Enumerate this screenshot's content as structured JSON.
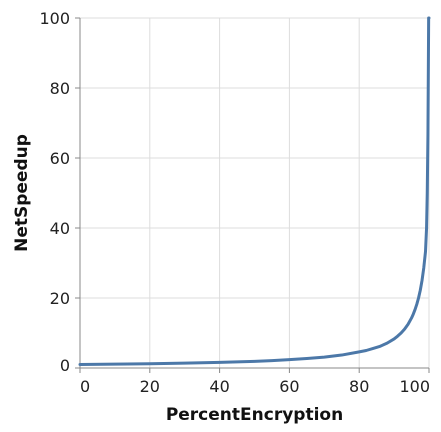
{
  "chart_data": {
    "type": "line",
    "xlabel": "PercentEncryption",
    "ylabel": "NetSpeedup",
    "xlim": [
      0,
      100
    ],
    "ylim": [
      0,
      100
    ],
    "x_ticks": [
      "0",
      "20",
      "40",
      "60",
      "80",
      "100"
    ],
    "y_ticks": [
      "0",
      "20",
      "40",
      "60",
      "80",
      "100"
    ],
    "grid": true,
    "line_color": "#4c78a8",
    "series": [
      {
        "x": [
          0,
          10,
          20,
          30,
          40,
          50,
          55,
          60,
          65,
          70,
          75,
          80,
          82,
          84,
          86,
          88,
          90,
          91,
          92,
          93,
          94,
          95,
          95.5,
          96,
          96.5,
          97,
          97.5,
          98,
          98.5,
          99,
          99.3,
          99.5,
          99.7,
          99.9,
          100
        ],
        "y": [
          1.0,
          1.1,
          1.23,
          1.4,
          1.6,
          1.9,
          2.1,
          2.4,
          2.7,
          3.1,
          3.7,
          4.6,
          5.0,
          5.6,
          6.2,
          7.1,
          8.3,
          9.1,
          10.0,
          11.1,
          12.5,
          14.3,
          15.4,
          16.7,
          18.2,
          20.0,
          22.2,
          25.0,
          28.6,
          33.3,
          40.0,
          50.0,
          66.7,
          100.0,
          100.0
        ]
      }
    ]
  }
}
